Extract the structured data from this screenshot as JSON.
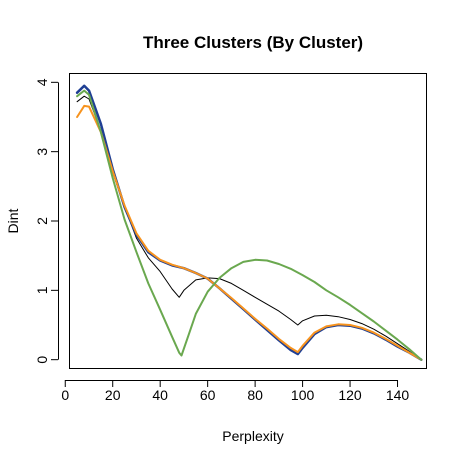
{
  "chart_data": {
    "type": "line",
    "title": "Three Clusters (By Cluster)",
    "xlabel": "Perplexity",
    "ylabel": "Dint",
    "xlim": [
      2,
      152
    ],
    "ylim": [
      -0.12,
      4.12
    ],
    "x_ticks": [
      0,
      20,
      40,
      60,
      80,
      100,
      120,
      140
    ],
    "y_ticks": [
      0,
      1,
      2,
      3,
      4
    ],
    "grid": false,
    "legend": "none",
    "series": [
      {
        "color": "#000000",
        "width": 1,
        "x": [
          5,
          8,
          10,
          15,
          20,
          25,
          30,
          35,
          40,
          45,
          48,
          50,
          55,
          60,
          65,
          70,
          75,
          80,
          85,
          90,
          95,
          98,
          100,
          105,
          110,
          115,
          120,
          125,
          130,
          135,
          140,
          145,
          150
        ],
        "y": [
          3.72,
          3.8,
          3.76,
          3.3,
          2.7,
          2.2,
          1.75,
          1.47,
          1.27,
          1.02,
          0.9,
          1.0,
          1.15,
          1.18,
          1.17,
          1.1,
          1.0,
          0.9,
          0.8,
          0.7,
          0.58,
          0.5,
          0.56,
          0.63,
          0.64,
          0.62,
          0.58,
          0.52,
          0.44,
          0.34,
          0.23,
          0.12,
          0.0
        ]
      },
      {
        "color": "#1f3f94",
        "width": 2.5,
        "x": [
          5,
          8,
          10,
          15,
          20,
          25,
          30,
          35,
          40,
          45,
          50,
          55,
          60,
          65,
          70,
          75,
          80,
          85,
          90,
          95,
          98,
          100,
          105,
          110,
          115,
          120,
          125,
          130,
          135,
          140,
          145,
          150
        ],
        "y": [
          3.85,
          3.95,
          3.88,
          3.4,
          2.75,
          2.2,
          1.8,
          1.55,
          1.43,
          1.36,
          1.32,
          1.25,
          1.17,
          1.03,
          0.88,
          0.73,
          0.58,
          0.43,
          0.28,
          0.14,
          0.08,
          0.17,
          0.37,
          0.47,
          0.5,
          0.49,
          0.45,
          0.38,
          0.29,
          0.19,
          0.1,
          0.0
        ]
      },
      {
        "color": "#f7931e",
        "width": 2,
        "x": [
          5,
          8,
          10,
          15,
          20,
          25,
          30,
          35,
          40,
          45,
          50,
          55,
          60,
          65,
          70,
          75,
          80,
          85,
          90,
          95,
          98,
          100,
          105,
          110,
          115,
          120,
          125,
          130,
          135,
          140,
          145,
          150
        ],
        "y": [
          3.5,
          3.66,
          3.65,
          3.28,
          2.72,
          2.22,
          1.82,
          1.57,
          1.44,
          1.37,
          1.32,
          1.25,
          1.17,
          1.03,
          0.89,
          0.74,
          0.59,
          0.45,
          0.3,
          0.17,
          0.11,
          0.2,
          0.39,
          0.48,
          0.51,
          0.5,
          0.46,
          0.39,
          0.3,
          0.2,
          0.1,
          0.0
        ]
      },
      {
        "color": "#6aa84f",
        "width": 2,
        "x": [
          5,
          8,
          10,
          15,
          20,
          25,
          30,
          35,
          40,
          45,
          48,
          49,
          52,
          55,
          60,
          65,
          70,
          75,
          80,
          85,
          90,
          95,
          100,
          105,
          110,
          115,
          120,
          125,
          130,
          135,
          140,
          145,
          150
        ],
        "y": [
          3.8,
          3.88,
          3.82,
          3.28,
          2.62,
          2.02,
          1.55,
          1.1,
          0.72,
          0.33,
          0.1,
          0.06,
          0.36,
          0.66,
          0.98,
          1.18,
          1.32,
          1.41,
          1.44,
          1.43,
          1.38,
          1.31,
          1.22,
          1.12,
          1.0,
          0.9,
          0.79,
          0.67,
          0.55,
          0.42,
          0.29,
          0.15,
          0.0
        ]
      }
    ]
  }
}
